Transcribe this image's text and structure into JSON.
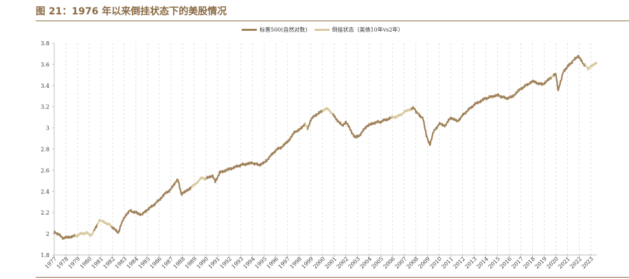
{
  "header": {
    "title": "图 21：1976 年以来倒挂状态下的美股情况"
  },
  "colors": {
    "title": "#8B6A44",
    "normal": "#A0825A",
    "inverted": "#D8C9A0",
    "grid": "#d9d9d9"
  },
  "chart_data": {
    "type": "line",
    "title": "",
    "xlabel": "",
    "ylabel": "",
    "ylim": [
      1.8,
      3.8
    ],
    "yticks": [
      "1.8",
      "2",
      "2.2",
      "2.4",
      "2.6",
      "2.8",
      "3",
      "3.2",
      "3.4",
      "3.6",
      "3.8"
    ],
    "xticks": [
      "1977",
      "1978",
      "1979",
      "1980",
      "1981",
      "1982",
      "1983",
      "1984",
      "1985",
      "1986",
      "1987",
      "1988",
      "1989",
      "1990",
      "1991",
      "1992",
      "1993",
      "1994",
      "1995",
      "1996",
      "1997",
      "1998",
      "1999",
      "2000",
      "2001",
      "2002",
      "2003",
      "2004",
      "2005",
      "2006",
      "2007",
      "2008",
      "2009",
      "2010",
      "2011",
      "2012",
      "2013",
      "2014",
      "2015",
      "2016",
      "2017",
      "2018",
      "2019",
      "2020",
      "2021",
      "2022",
      "2023"
    ],
    "grid": "vertical dashed",
    "legend_position": "top-center",
    "series": [
      {
        "name": "标普500(自然对数)",
        "color": "#A0825A"
      },
      {
        "name": "倒挂状态（美债10年vs2年）",
        "color": "#D8C9A0"
      }
    ],
    "keypoints": [
      [
        1977.0,
        2.02
      ],
      [
        1977.8,
        1.96
      ],
      [
        1978.3,
        1.97
      ],
      [
        1978.8,
        1.98
      ],
      [
        1979.3,
        2.0
      ],
      [
        1979.8,
        2.01
      ],
      [
        1980.2,
        1.98
      ],
      [
        1980.5,
        2.05
      ],
      [
        1980.9,
        2.13
      ],
      [
        1981.3,
        2.11
      ],
      [
        1981.8,
        2.08
      ],
      [
        1982.0,
        2.06
      ],
      [
        1982.5,
        2.01
      ],
      [
        1982.9,
        2.14
      ],
      [
        1983.5,
        2.22
      ],
      [
        1984.0,
        2.2
      ],
      [
        1984.5,
        2.18
      ],
      [
        1985.0,
        2.23
      ],
      [
        1985.5,
        2.27
      ],
      [
        1986.0,
        2.32
      ],
      [
        1986.5,
        2.38
      ],
      [
        1987.0,
        2.42
      ],
      [
        1987.6,
        2.52
      ],
      [
        1987.9,
        2.37
      ],
      [
        1988.5,
        2.42
      ],
      [
        1989.0,
        2.46
      ],
      [
        1989.6,
        2.53
      ],
      [
        1990.0,
        2.52
      ],
      [
        1990.6,
        2.55
      ],
      [
        1990.8,
        2.49
      ],
      [
        1991.2,
        2.58
      ],
      [
        1992.0,
        2.61
      ],
      [
        1993.0,
        2.65
      ],
      [
        1994.0,
        2.67
      ],
      [
        1994.5,
        2.65
      ],
      [
        1995.0,
        2.67
      ],
      [
        1995.5,
        2.73
      ],
      [
        1996.0,
        2.79
      ],
      [
        1996.5,
        2.82
      ],
      [
        1997.0,
        2.87
      ],
      [
        1997.6,
        2.96
      ],
      [
        1998.0,
        2.98
      ],
      [
        1998.5,
        3.04
      ],
      [
        1998.7,
        2.99
      ],
      [
        1999.0,
        3.08
      ],
      [
        1999.5,
        3.13
      ],
      [
        2000.0,
        3.16
      ],
      [
        2000.3,
        3.19
      ],
      [
        2000.8,
        3.14
      ],
      [
        2001.2,
        3.08
      ],
      [
        2001.7,
        3.02
      ],
      [
        2002.0,
        3.06
      ],
      [
        2002.5,
        2.96
      ],
      [
        2002.8,
        2.91
      ],
      [
        2003.2,
        2.93
      ],
      [
        2003.8,
        3.02
      ],
      [
        2004.5,
        3.05
      ],
      [
        2005.0,
        3.06
      ],
      [
        2005.5,
        3.08
      ],
      [
        2006.0,
        3.1
      ],
      [
        2006.5,
        3.11
      ],
      [
        2007.0,
        3.15
      ],
      [
        2007.8,
        3.19
      ],
      [
        2008.2,
        3.13
      ],
      [
        2008.6,
        3.09
      ],
      [
        2008.9,
        2.93
      ],
      [
        2009.2,
        2.84
      ],
      [
        2009.5,
        2.96
      ],
      [
        2010.0,
        3.04
      ],
      [
        2010.5,
        3.02
      ],
      [
        2011.0,
        3.1
      ],
      [
        2011.6,
        3.06
      ],
      [
        2012.0,
        3.12
      ],
      [
        2013.0,
        3.22
      ],
      [
        2014.0,
        3.28
      ],
      [
        2015.0,
        3.31
      ],
      [
        2015.7,
        3.28
      ],
      [
        2016.2,
        3.29
      ],
      [
        2017.0,
        3.37
      ],
      [
        2018.0,
        3.44
      ],
      [
        2018.8,
        3.41
      ],
      [
        2019.0,
        3.42
      ],
      [
        2019.5,
        3.47
      ],
      [
        2020.0,
        3.51
      ],
      [
        2020.2,
        3.35
      ],
      [
        2020.6,
        3.52
      ],
      [
        2021.0,
        3.58
      ],
      [
        2021.9,
        3.68
      ],
      [
        2022.4,
        3.6
      ],
      [
        2022.8,
        3.56
      ],
      [
        2023.2,
        3.6
      ],
      [
        2023.5,
        3.61
      ]
    ],
    "inverted_periods": [
      [
        1978.8,
        1980.4
      ],
      [
        1980.7,
        1981.9
      ],
      [
        1988.8,
        1990.0
      ],
      [
        1998.5,
        1998.7
      ],
      [
        2000.0,
        2000.9
      ],
      [
        2005.9,
        2007.6
      ],
      [
        2019.6,
        2019.8
      ],
      [
        2022.5,
        2023.5
      ]
    ]
  }
}
